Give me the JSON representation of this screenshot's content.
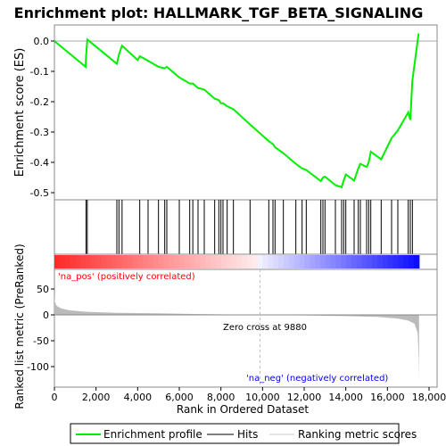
{
  "chart_data": {
    "type": "line",
    "title": "Enrichment plot: HALLMARK_TGF_BETA_SIGNALING",
    "ylabel_top": "Enrichment score (ES)",
    "ylabel_bottom": "Ranked list metric (PreRanked)",
    "xlabel": "Rank in Ordered Dataset",
    "xlim": [
      0,
      18000
    ],
    "xticks": [
      0,
      2000,
      4000,
      6000,
      8000,
      10000,
      12000,
      14000,
      16000,
      18000
    ],
    "xtick_labels": [
      "0",
      "2,000",
      "4,000",
      "6,000",
      "8,000",
      "10,000",
      "12,000",
      "14,000",
      "16,000",
      "18,000"
    ],
    "es_ylim": [
      -0.51,
      0.05
    ],
    "es_yticks": [
      0.0,
      -0.1,
      -0.2,
      -0.3,
      -0.4,
      -0.5
    ],
    "es_ytick_labels": [
      "0.0",
      "-0.1",
      "-0.2",
      "-0.3",
      "-0.4",
      "-0.5"
    ],
    "metric_ylim": [
      -130,
      50
    ],
    "metric_yticks": [
      50,
      0,
      -50,
      -100
    ],
    "metric_ytick_labels": [
      "50",
      "0",
      "-50",
      "-100"
    ],
    "zero_cross_label": "Zero cross at 9880",
    "zero_cross": 9880,
    "pos_label": "'na_pos' (positively correlated)",
    "neg_label": "'na_neg' (negatively correlated)",
    "colors": {
      "es_line": "#00ee00",
      "pos": "#ff0000",
      "neg": "#0000ff",
      "hits": "#000000",
      "metric": "#bbbbbb",
      "zero_line": "#bbbbbb"
    },
    "legend": [
      "Enrichment profile",
      "Hits",
      "Ranking metric scores"
    ],
    "legend_placement": "bottom",
    "hits": [
      1520,
      1580,
      3000,
      3100,
      3250,
      4100,
      4500,
      5000,
      5300,
      5400,
      6000,
      6500,
      6650,
      6900,
      7200,
      7700,
      7900,
      8000,
      8100,
      8300,
      8600,
      9400,
      10300,
      10500,
      10600,
      11000,
      11600,
      11900,
      12100,
      12800,
      12900,
      13000,
      13500,
      13800,
      13900,
      14000,
      14400,
      14600,
      14700,
      15000,
      15100,
      15200,
      15700,
      16200,
      16500,
      17000,
      17100,
      17200
    ],
    "es_curve": {
      "x": [
        0,
        1500,
        1520,
        1580,
        3000,
        3100,
        3250,
        4000,
        4100,
        4500,
        5000,
        5300,
        5400,
        6000,
        6500,
        6650,
        6900,
        7200,
        7700,
        7900,
        8000,
        8100,
        8300,
        8600,
        9400,
        10300,
        10500,
        10600,
        11000,
        11600,
        11900,
        12100,
        12800,
        12900,
        13000,
        13500,
        13800,
        13900,
        14000,
        14400,
        14600,
        14700,
        15000,
        15100,
        15200,
        15700,
        16200,
        16500,
        17000,
        17100,
        17200,
        17500
      ],
      "y": [
        0.0,
        -0.085,
        -0.05,
        0.005,
        -0.075,
        -0.045,
        -0.015,
        -0.063,
        -0.05,
        -0.065,
        -0.085,
        -0.09,
        -0.085,
        -0.12,
        -0.14,
        -0.14,
        -0.155,
        -0.16,
        -0.19,
        -0.195,
        -0.205,
        -0.205,
        -0.215,
        -0.225,
        -0.275,
        -0.33,
        -0.34,
        -0.35,
        -0.37,
        -0.405,
        -0.42,
        -0.425,
        -0.462,
        -0.45,
        -0.447,
        -0.475,
        -0.482,
        -0.46,
        -0.44,
        -0.46,
        -0.42,
        -0.405,
        -0.415,
        -0.4,
        -0.365,
        -0.39,
        -0.32,
        -0.295,
        -0.235,
        -0.26,
        -0.13,
        0.025
      ]
    },
    "metric_curve": {
      "x": [
        0,
        30,
        100,
        300,
        700,
        1500,
        3000,
        5000,
        7000,
        9880,
        12000,
        14000,
        15500,
        16500,
        17000,
        17300,
        17450,
        17500,
        17520
      ],
      "y": [
        35,
        25,
        18,
        13,
        9,
        6,
        4,
        3,
        1.5,
        0,
        -1,
        -2.5,
        -4,
        -7,
        -11,
        -17,
        -35,
        -80,
        -125
      ]
    }
  }
}
